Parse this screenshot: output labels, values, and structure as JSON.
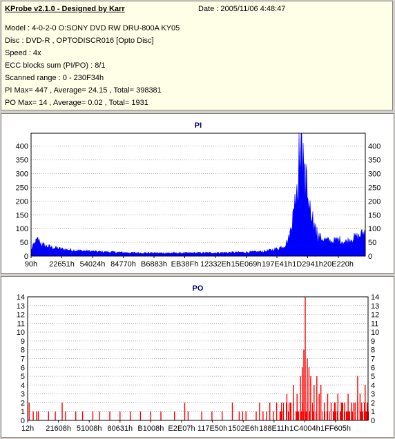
{
  "header": {
    "app_title": "KProbe v2.1.0 - Designed by Karr",
    "date": "Date : 2005/11/06 4:48:47",
    "lines": [
      "Model : 4-0-2-0 O:SONY    DVD RW DRU-800A  KY05",
      "Disc : DVD-R , OPTODISCR016 [Opto Disc]",
      "Speed : 4x",
      "ECC blocks sum (PI/PO) : 8/1",
      "Scanned range : 0 - 230F34h",
      "PI Max= 447 , Average= 24.15 , Total= 398381",
      "PO Max= 14 , Average= 0.02 , Total= 1931"
    ]
  },
  "colors": {
    "pi": "#0000ff",
    "po": "#ff0000",
    "title": "#000080",
    "grid": "#b0b0b0"
  },
  "chart_data": [
    {
      "type": "area",
      "title": "PI",
      "ylim": [
        0,
        447
      ],
      "yticks": [
        0,
        50,
        100,
        150,
        200,
        250,
        300,
        350,
        400
      ],
      "xticks": [
        "90h",
        "22651h",
        "54024h",
        "84770h",
        "B6883h",
        "EB38Fh",
        "12332Eh",
        "15E069h",
        "197E41h",
        "1D2941h",
        "20E220h"
      ],
      "grid": "horizontal dotted",
      "anchors": [
        [
          0,
          22
        ],
        [
          1,
          45
        ],
        [
          2,
          60
        ],
        [
          3,
          45
        ],
        [
          4,
          38
        ],
        [
          5,
          35
        ],
        [
          6,
          32
        ],
        [
          8,
          28
        ],
        [
          10,
          24
        ],
        [
          14,
          20
        ],
        [
          20,
          16
        ],
        [
          25,
          14
        ],
        [
          30,
          12
        ],
        [
          38,
          11
        ],
        [
          45,
          11
        ],
        [
          55,
          12
        ],
        [
          60,
          13
        ],
        [
          65,
          14
        ],
        [
          70,
          17
        ],
        [
          72,
          22
        ],
        [
          74,
          28
        ],
        [
          76,
          40
        ],
        [
          77,
          60
        ],
        [
          78,
          110
        ],
        [
          79,
          180
        ],
        [
          79.5,
          260
        ],
        [
          80,
          330
        ],
        [
          80.5,
          420
        ],
        [
          80.8,
          447
        ],
        [
          81.2,
          380
        ],
        [
          82,
          260
        ],
        [
          83,
          180
        ],
        [
          84,
          120
        ],
        [
          85,
          90
        ],
        [
          86,
          70
        ],
        [
          88,
          58
        ],
        [
          90,
          52
        ],
        [
          92,
          60
        ],
        [
          94,
          50
        ],
        [
          96,
          65
        ],
        [
          98,
          70
        ],
        [
          100,
          90
        ]
      ]
    },
    {
      "type": "bar",
      "title": "PO",
      "ylim": [
        0,
        14
      ],
      "yticks": [
        0,
        1,
        2,
        3,
        4,
        5,
        6,
        7,
        8,
        9,
        10,
        11,
        12,
        13,
        14
      ],
      "xticks": [
        "12h",
        "21608h",
        "51008h",
        "80631h",
        "B1008h",
        "E2E07h",
        "117E50h",
        "1502E6h",
        "188E11h",
        "1C4004h",
        "1FF605h"
      ],
      "grid": "horizontal dotted",
      "spikes": [
        [
          0.3,
          2
        ],
        [
          1.5,
          1
        ],
        [
          2.5,
          1
        ],
        [
          3,
          1
        ],
        [
          6,
          1
        ],
        [
          8,
          1
        ],
        [
          10,
          2
        ],
        [
          11,
          1
        ],
        [
          14,
          1
        ],
        [
          16,
          1
        ],
        [
          19,
          1
        ],
        [
          21,
          1
        ],
        [
          24,
          1
        ],
        [
          27,
          1
        ],
        [
          30,
          1
        ],
        [
          33,
          1
        ],
        [
          36,
          1
        ],
        [
          39,
          1
        ],
        [
          43,
          1
        ],
        [
          46,
          2
        ],
        [
          47,
          1
        ],
        [
          51,
          1
        ],
        [
          54,
          1
        ],
        [
          57,
          1
        ],
        [
          60,
          2
        ],
        [
          62,
          1
        ],
        [
          63,
          1
        ],
        [
          64,
          1
        ],
        [
          67,
          1
        ],
        [
          68,
          2
        ],
        [
          69,
          1
        ],
        [
          70,
          1
        ],
        [
          71,
          2
        ],
        [
          72,
          1
        ],
        [
          73,
          2
        ],
        [
          74,
          1
        ],
        [
          75,
          2
        ],
        [
          76,
          3
        ],
        [
          77,
          2
        ],
        [
          78,
          4
        ],
        [
          79,
          3
        ],
        [
          80,
          5
        ],
        [
          80.6,
          6
        ],
        [
          81,
          8
        ],
        [
          81.4,
          14
        ],
        [
          82,
          7
        ],
        [
          82.5,
          6
        ],
        [
          83,
          5
        ],
        [
          84,
          4
        ],
        [
          84.8,
          5
        ],
        [
          85.5,
          3
        ],
        [
          86,
          4
        ],
        [
          87,
          2
        ],
        [
          88,
          3
        ],
        [
          89,
          2
        ],
        [
          90,
          2
        ],
        [
          91,
          3
        ],
        [
          92,
          2
        ],
        [
          93,
          2
        ],
        [
          94,
          3
        ],
        [
          95,
          2
        ],
        [
          96,
          2
        ],
        [
          96.8,
          5
        ],
        [
          97.5,
          3
        ],
        [
          98,
          2
        ],
        [
          99,
          4
        ],
        [
          99.6,
          2
        ]
      ]
    }
  ]
}
